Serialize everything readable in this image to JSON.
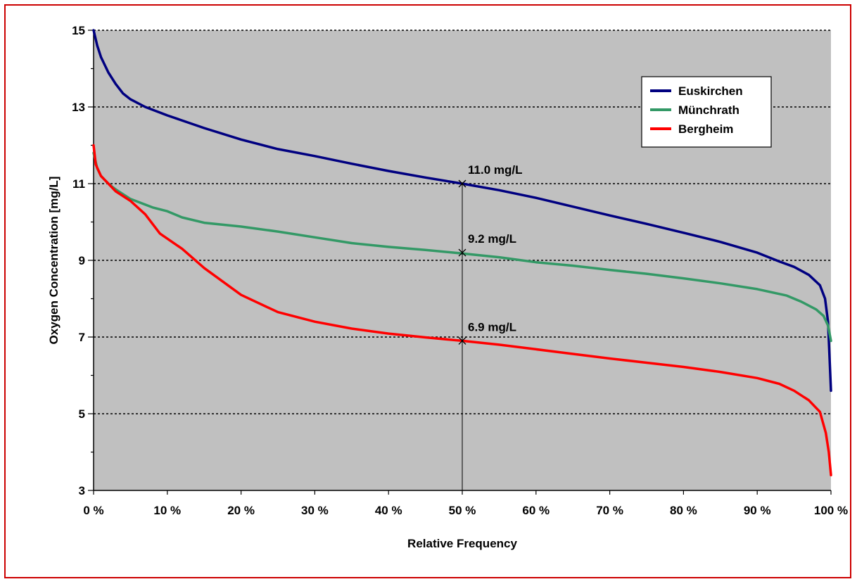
{
  "chart_data": {
    "type": "line",
    "title": "",
    "xlabel": "Relative Frequency",
    "ylabel": "Oxygen Concentration [mg/L]",
    "xlim": [
      0,
      100
    ],
    "ylim": [
      3,
      15
    ],
    "x_unit": "%",
    "xticks": [
      0,
      10,
      20,
      30,
      40,
      50,
      60,
      70,
      80,
      90,
      100
    ],
    "xtick_labels": [
      "0 %",
      "10 %",
      "20 %",
      "30 %",
      "40 %",
      "50 %",
      "60 %",
      "70 %",
      "80 %",
      "90 %",
      "100 %"
    ],
    "yticks": [
      3,
      5,
      7,
      9,
      11,
      13,
      15
    ],
    "ytick_labels": [
      "3",
      "5",
      "7",
      "9",
      "11",
      "13",
      "15"
    ],
    "grid": "horizontal dotted",
    "plot_background": "#c0c0c0",
    "legend_position": "top-right",
    "series": [
      {
        "name": "Euskirchen",
        "color": "#000080",
        "points": [
          [
            0,
            15.0
          ],
          [
            0.5,
            14.6
          ],
          [
            1,
            14.3
          ],
          [
            2,
            13.9
          ],
          [
            3,
            13.6
          ],
          [
            4,
            13.35
          ],
          [
            5,
            13.2
          ],
          [
            7,
            13.0
          ],
          [
            10,
            12.78
          ],
          [
            15,
            12.45
          ],
          [
            20,
            12.15
          ],
          [
            25,
            11.9
          ],
          [
            30,
            11.72
          ],
          [
            35,
            11.52
          ],
          [
            40,
            11.33
          ],
          [
            45,
            11.16
          ],
          [
            50,
            11.0
          ],
          [
            55,
            10.83
          ],
          [
            60,
            10.63
          ],
          [
            65,
            10.4
          ],
          [
            70,
            10.17
          ],
          [
            75,
            9.95
          ],
          [
            80,
            9.72
          ],
          [
            85,
            9.48
          ],
          [
            90,
            9.2
          ],
          [
            93,
            8.97
          ],
          [
            95,
            8.83
          ],
          [
            97,
            8.62
          ],
          [
            98.5,
            8.35
          ],
          [
            99.2,
            8.0
          ],
          [
            99.6,
            7.4
          ],
          [
            100,
            5.6
          ]
        ]
      },
      {
        "name": "Münchrath",
        "color": "#339966",
        "points": [
          [
            0,
            11.8
          ],
          [
            0.5,
            11.4
          ],
          [
            1,
            11.2
          ],
          [
            2,
            11.0
          ],
          [
            3,
            10.85
          ],
          [
            5,
            10.6
          ],
          [
            8,
            10.38
          ],
          [
            10,
            10.28
          ],
          [
            12,
            10.12
          ],
          [
            15,
            9.98
          ],
          [
            20,
            9.88
          ],
          [
            25,
            9.75
          ],
          [
            30,
            9.6
          ],
          [
            35,
            9.45
          ],
          [
            40,
            9.35
          ],
          [
            45,
            9.27
          ],
          [
            50,
            9.18
          ],
          [
            55,
            9.08
          ],
          [
            60,
            8.95
          ],
          [
            65,
            8.86
          ],
          [
            70,
            8.75
          ],
          [
            75,
            8.65
          ],
          [
            80,
            8.53
          ],
          [
            85,
            8.4
          ],
          [
            90,
            8.25
          ],
          [
            94,
            8.08
          ],
          [
            96,
            7.92
          ],
          [
            98,
            7.72
          ],
          [
            99,
            7.55
          ],
          [
            99.6,
            7.3
          ],
          [
            100,
            6.9
          ]
        ]
      },
      {
        "name": "Bergheim",
        "color": "#ff0000",
        "points": [
          [
            0,
            12.0
          ],
          [
            0.3,
            11.5
          ],
          [
            1,
            11.2
          ],
          [
            2,
            11.0
          ],
          [
            3,
            10.8
          ],
          [
            5,
            10.55
          ],
          [
            7,
            10.2
          ],
          [
            9,
            9.7
          ],
          [
            12,
            9.3
          ],
          [
            15,
            8.8
          ],
          [
            20,
            8.1
          ],
          [
            25,
            7.65
          ],
          [
            30,
            7.4
          ],
          [
            35,
            7.22
          ],
          [
            40,
            7.09
          ],
          [
            45,
            6.99
          ],
          [
            50,
            6.9
          ],
          [
            55,
            6.8
          ],
          [
            60,
            6.68
          ],
          [
            65,
            6.56
          ],
          [
            70,
            6.44
          ],
          [
            75,
            6.33
          ],
          [
            80,
            6.22
          ],
          [
            85,
            6.09
          ],
          [
            90,
            5.93
          ],
          [
            93,
            5.78
          ],
          [
            95,
            5.6
          ],
          [
            97,
            5.35
          ],
          [
            98.5,
            5.05
          ],
          [
            99.3,
            4.5
          ],
          [
            99.7,
            4.0
          ],
          [
            100,
            3.4
          ]
        ]
      }
    ],
    "annotations": [
      {
        "x": 50,
        "y": 11.0,
        "label": "11.0 mg/L"
      },
      {
        "x": 50,
        "y": 9.2,
        "label": "9.2 mg/L"
      },
      {
        "x": 50,
        "y": 6.9,
        "label": "6.9 mg/L"
      }
    ],
    "marker_line": {
      "x": 50,
      "y_from": 3,
      "y_to": 11.0
    }
  }
}
